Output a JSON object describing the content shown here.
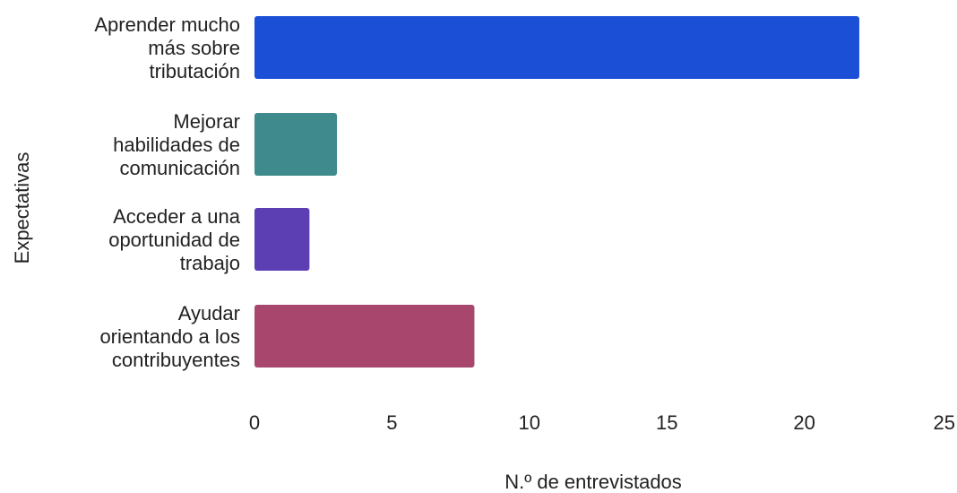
{
  "chart_data": {
    "type": "bar",
    "orientation": "horizontal",
    "categories": [
      [
        "Aprender mucho",
        "más sobre",
        "tributación"
      ],
      [
        "Mejorar",
        "habilidades de",
        "comunicación"
      ],
      [
        "Acceder a una",
        "oportunidad de",
        "trabajo"
      ],
      [
        "Ayudar",
        "orientando a los",
        "contribuyentes"
      ]
    ],
    "values": [
      22,
      3,
      2,
      8
    ],
    "colors": [
      "#1a4fd6",
      "#3f8a8c",
      "#5b3fb3",
      "#a8466e"
    ],
    "xlabel": "N.º de entrevistados",
    "ylabel": "Expectativas",
    "xlim": [
      0,
      25
    ],
    "xticks": [
      "0",
      "5",
      "10",
      "15",
      "20",
      "25"
    ],
    "grid": false,
    "legend": "none"
  }
}
